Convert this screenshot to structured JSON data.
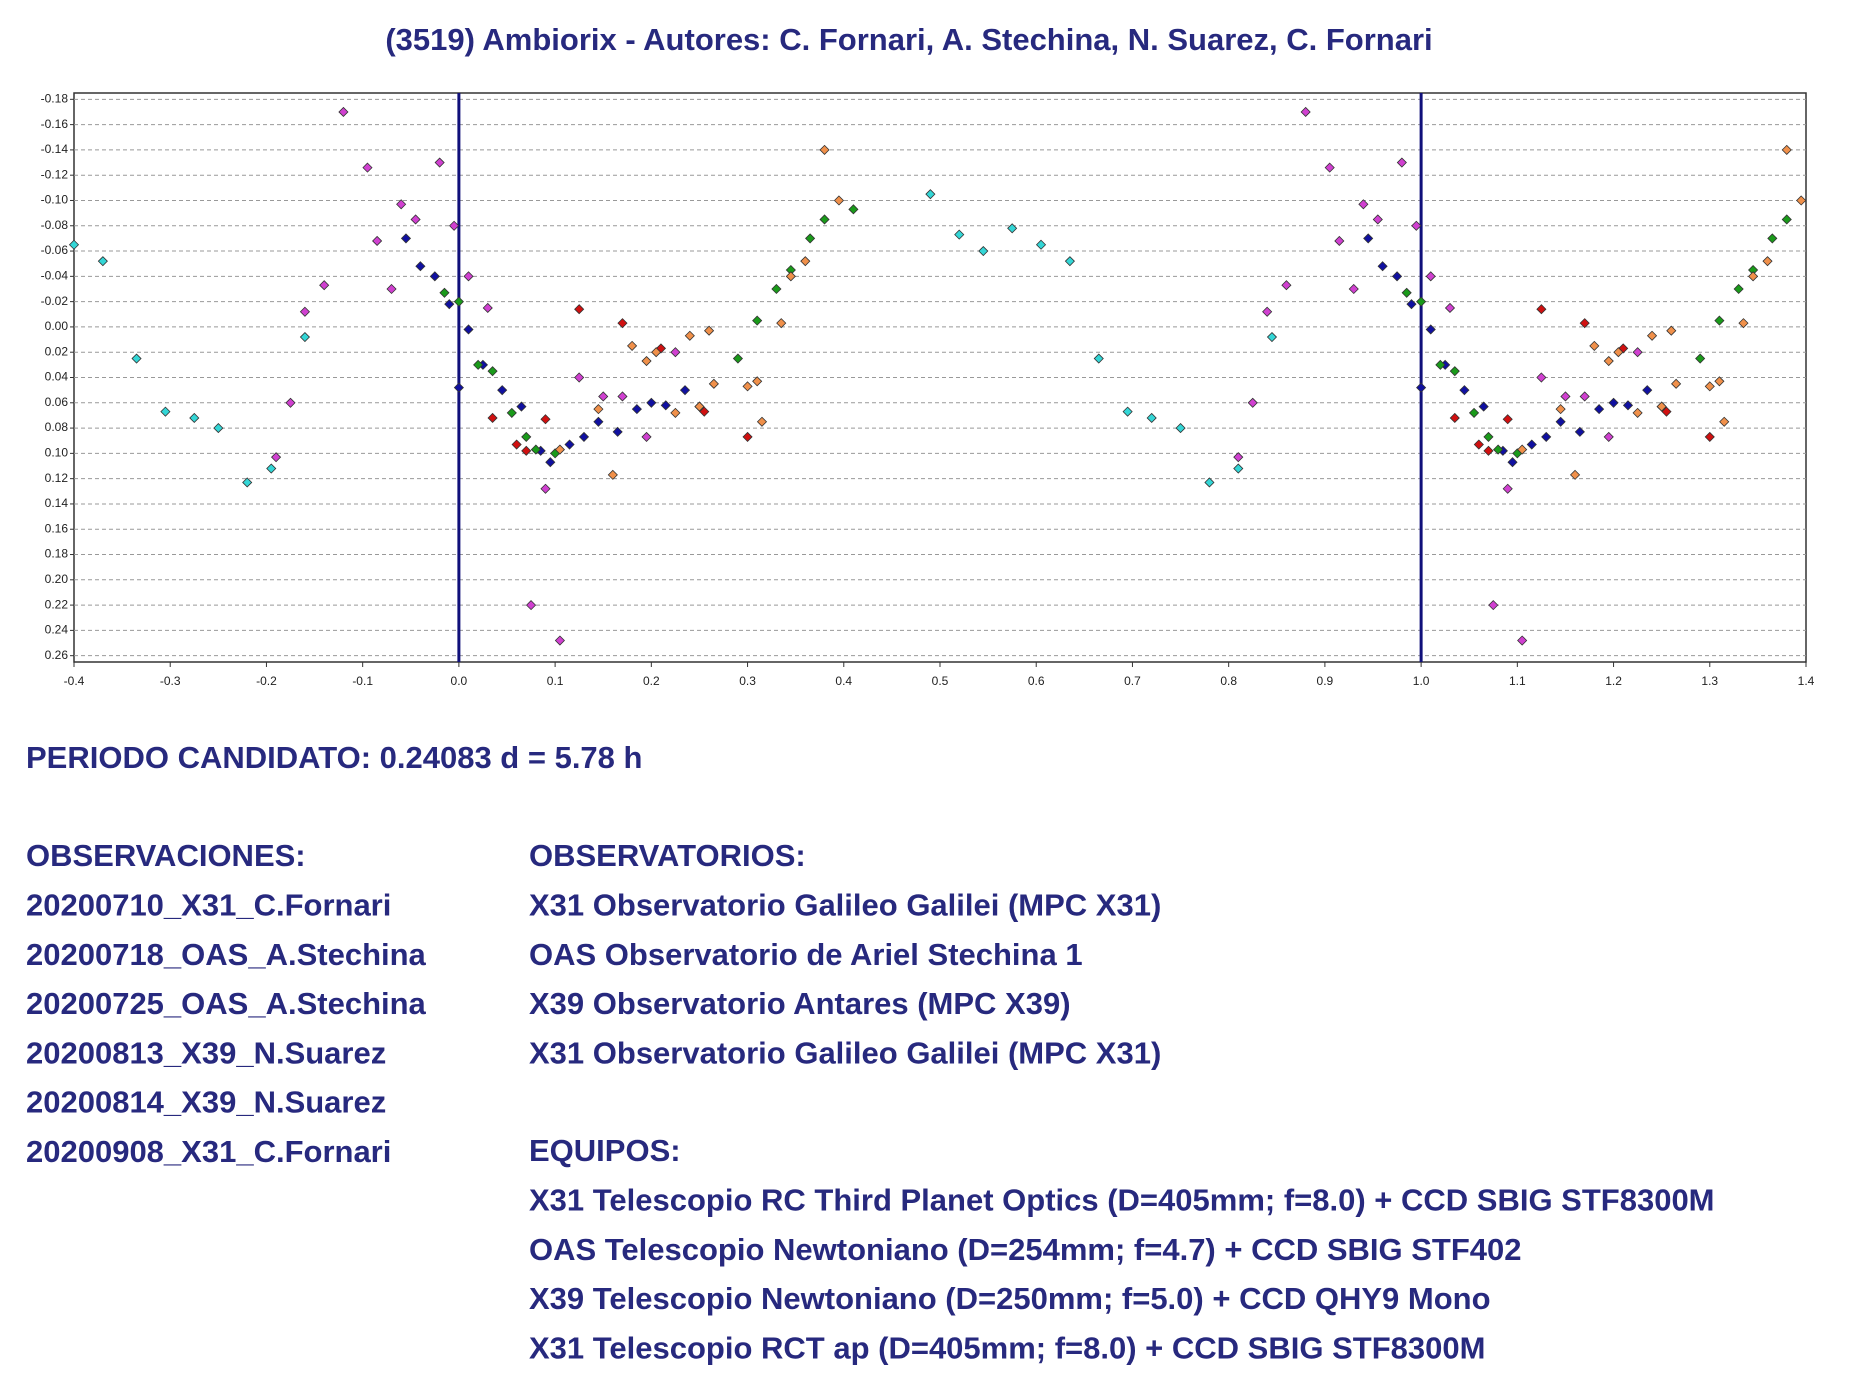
{
  "chart_data": {
    "type": "scatter",
    "title": "(3519) Ambiorix - Autores: C. Fornari, A. Stechina, N. Suarez, C. Fornari",
    "xlim": [
      -0.4,
      1.4
    ],
    "ylim": [
      -0.185,
      0.265
    ],
    "y_inverted": true,
    "grid": true,
    "xticks": [
      -0.4,
      -0.3,
      -0.2,
      -0.1,
      {
        "value": 0,
        "label": "0.0"
      },
      0.1,
      0.2,
      0.3,
      0.4,
      0.5,
      0.6,
      0.7,
      0.8,
      0.9,
      {
        "value": 1,
        "label": "1.0"
      },
      1.1,
      1.2,
      1.3,
      1.4
    ],
    "yticks": [
      {
        "value": -0.18,
        "label": "-0.18"
      },
      {
        "value": -0.16,
        "label": "-0.16"
      },
      {
        "value": -0.14,
        "label": "-0.14"
      },
      {
        "value": -0.12,
        "label": "-0.12"
      },
      {
        "value": -0.1,
        "label": "-0.10"
      },
      {
        "value": -0.08,
        "label": "-0.08"
      },
      {
        "value": -0.06,
        "label": "-0.06"
      },
      {
        "value": -0.04,
        "label": "-0.04"
      },
      {
        "value": -0.02,
        "label": "-0.02"
      },
      {
        "value": 0,
        "label": "0.00"
      },
      0.02,
      0.04,
      0.06,
      0.08,
      {
        "value": 0.1,
        "label": "0.10"
      },
      0.12,
      0.14,
      0.16,
      0.18,
      {
        "value": 0.2,
        "label": "0.20"
      },
      0.22,
      0.24,
      0.26
    ],
    "vlines": [
      0,
      1
    ],
    "vline_color": "#10107a",
    "series": [
      {
        "color": "#33d6d6",
        "x": [
          -0.4,
          -0.37,
          -0.335,
          -0.305,
          -0.275,
          -0.25,
          -0.22,
          -0.195,
          -0.16,
          0.49,
          0.52,
          0.545,
          0.575,
          0.605,
          0.635,
          0.665,
          0.695,
          0.72,
          0.75,
          0.78,
          0.81,
          0.845
        ],
        "values": [
          -0.065,
          -0.052,
          0.025,
          0.067,
          0.072,
          0.08,
          0.123,
          0.112,
          0.008,
          -0.105,
          -0.073,
          -0.06,
          -0.078,
          -0.065,
          -0.052,
          0.025,
          0.067,
          0.072,
          0.08,
          0.123,
          0.112,
          0.008
        ]
      },
      {
        "color": "#d040d0",
        "x": [
          -0.12,
          -0.095,
          -0.085,
          -0.06,
          -0.07,
          -0.045,
          -0.02,
          -0.005,
          0.01,
          -0.14,
          -0.16,
          -0.175,
          -0.19,
          0.03,
          0.075,
          0.09,
          0.105,
          0.125,
          0.15,
          0.17,
          0.195,
          0.225,
          0.88,
          0.905,
          0.915,
          0.94,
          0.93,
          0.955,
          0.98,
          0.995,
          1.01,
          0.86,
          0.84,
          0.825,
          0.81,
          1.03,
          1.075,
          1.09,
          1.105,
          1.125,
          1.15,
          1.17,
          1.195,
          1.225
        ],
        "values": [
          -0.17,
          -0.126,
          -0.068,
          -0.097,
          -0.03,
          -0.085,
          -0.13,
          -0.08,
          -0.04,
          -0.033,
          -0.012,
          0.06,
          0.103,
          -0.015,
          0.22,
          0.128,
          0.248,
          0.04,
          0.055,
          0.055,
          0.087,
          0.02,
          -0.17,
          -0.126,
          -0.068,
          -0.097,
          -0.03,
          -0.085,
          -0.13,
          -0.08,
          -0.04,
          -0.033,
          -0.012,
          0.06,
          0.103,
          -0.015,
          0.22,
          0.128,
          0.248,
          0.04,
          0.055,
          0.055,
          0.087,
          0.02
        ]
      },
      {
        "color": "#1010a0",
        "x": [
          -0.055,
          -0.04,
          -0.025,
          -0.01,
          0.0,
          0.01,
          0.025,
          0.045,
          0.065,
          0.085,
          0.095,
          0.115,
          0.13,
          0.145,
          0.165,
          0.185,
          0.2,
          0.215,
          0.235,
          0.25,
          0.945,
          0.96,
          0.975,
          0.99,
          1.0,
          1.01,
          1.025,
          1.045,
          1.065,
          1.085,
          1.095,
          1.115,
          1.13,
          1.145,
          1.165,
          1.185,
          1.2,
          1.215,
          1.235,
          1.25
        ],
        "values": [
          -0.07,
          -0.048,
          -0.04,
          -0.018,
          0.048,
          0.002,
          0.03,
          0.05,
          0.063,
          0.098,
          0.107,
          0.093,
          0.087,
          0.075,
          0.083,
          0.065,
          0.06,
          0.062,
          0.05,
          0.063,
          -0.07,
          -0.048,
          -0.04,
          -0.018,
          0.048,
          0.002,
          0.03,
          0.05,
          0.063,
          0.098,
          0.107,
          0.093,
          0.087,
          0.075,
          0.083,
          0.065,
          0.06,
          0.062,
          0.05,
          0.063
        ]
      },
      {
        "color": "#1a9a1a",
        "x": [
          -0.015,
          0.0,
          0.02,
          0.035,
          0.055,
          0.07,
          0.08,
          0.1,
          0.29,
          0.31,
          0.33,
          0.345,
          0.365,
          0.38,
          0.41,
          0.985,
          1.0,
          1.02,
          1.035,
          1.055,
          1.07,
          1.08,
          1.1,
          1.29,
          1.31,
          1.33,
          1.345,
          1.365,
          1.38
        ],
        "values": [
          -0.027,
          -0.02,
          0.03,
          0.035,
          0.068,
          0.087,
          0.097,
          0.1,
          0.025,
          -0.005,
          -0.03,
          -0.045,
          -0.07,
          -0.085,
          -0.093,
          -0.027,
          -0.02,
          0.03,
          0.035,
          0.068,
          0.087,
          0.097,
          0.1,
          0.025,
          -0.005,
          -0.03,
          -0.045,
          -0.07,
          -0.085
        ]
      },
      {
        "color": "#d01010",
        "x": [
          0.035,
          0.06,
          0.07,
          0.09,
          0.125,
          0.17,
          0.21,
          0.255,
          0.3,
          1.035,
          1.06,
          1.07,
          1.09,
          1.125,
          1.17,
          1.21,
          1.255,
          1.3
        ],
        "values": [
          0.072,
          0.093,
          0.098,
          0.073,
          -0.014,
          -0.003,
          0.017,
          0.067,
          0.087,
          0.072,
          0.093,
          0.098,
          0.073,
          -0.014,
          -0.003,
          0.017,
          0.067,
          0.087
        ]
      },
      {
        "color": "#f0904a",
        "x": [
          0.38,
          0.395,
          0.36,
          0.345,
          0.335,
          0.31,
          0.3,
          0.315,
          0.265,
          0.25,
          0.24,
          0.225,
          0.195,
          0.205,
          0.18,
          0.145,
          0.16,
          0.105,
          0.26,
          1.38,
          1.395,
          1.36,
          1.345,
          1.335,
          1.31,
          1.3,
          1.315,
          1.265,
          1.25,
          1.24,
          1.225,
          1.195,
          1.205,
          1.18,
          1.145,
          1.16,
          1.105,
          1.26
        ],
        "values": [
          -0.14,
          -0.1,
          -0.052,
          -0.04,
          -0.003,
          0.043,
          0.047,
          0.075,
          0.045,
          0.063,
          0.007,
          0.068,
          0.027,
          0.02,
          0.015,
          0.065,
          0.117,
          0.097,
          0.003,
          -0.14,
          -0.1,
          -0.052,
          -0.04,
          -0.003,
          0.043,
          0.047,
          0.075,
          0.045,
          0.063,
          0.007,
          0.068,
          0.027,
          0.02,
          0.015,
          0.065,
          0.117,
          0.097,
          0.003
        ]
      }
    ]
  },
  "period": "PERIODO CANDIDATO: 0.24083 d = 5.78 h",
  "observations": {
    "title": "OBSERVACIONES:",
    "items": [
      "20200710_X31_C.Fornari",
      "20200718_OAS_A.Stechina",
      "20200725_OAS_A.Stechina",
      "20200813_X39_N.Suarez",
      "20200814_X39_N.Suarez",
      "20200908_X31_C.Fornari"
    ]
  },
  "observatories": {
    "title": "OBSERVATORIOS:",
    "items": [
      "X31 Observatorio Galileo Galilei (MPC X31)",
      "OAS Observatorio de Ariel Stechina 1",
      "X39 Observatorio Antares (MPC X39)",
      "X31 Observatorio Galileo Galilei (MPC X31)"
    ]
  },
  "equipment": {
    "title": "EQUIPOS:",
    "items": [
      "X31 Telescopio RC Third Planet Optics (D=405mm; f=8.0) + CCD SBIG STF8300M",
      "OAS Telescopio Newtoniano (D=254mm; f=4.7) + CCD SBIG STF402",
      "X39 Telescopio Newtoniano (D=250mm; f=5.0) + CCD QHY9 Mono",
      "X31 Telescopio RCT ap (D=405mm; f=8.0) + CCD SBIG STF8300M"
    ]
  }
}
